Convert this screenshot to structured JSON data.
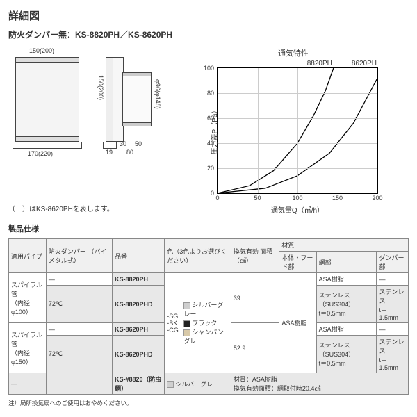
{
  "title": "詳細図",
  "subtitle": "防火ダンパー無：KS-8820PH／KS-8620PH",
  "diagram": {
    "dim_top": "150(200)",
    "dim_bottom": "170(220)",
    "dim_side_h": "150(200)",
    "dim_pipe": "φ96(φ148)",
    "dim_19": "19",
    "dim_30": "30",
    "dim_50": "50",
    "dim_80": "80",
    "note": "（　）はKS-8620PHを表します。"
  },
  "chart": {
    "title": "通気特性",
    "series_labels": [
      "8820PH",
      "8620PH"
    ],
    "xlabel": "通気量Q（㎥/h）",
    "ylabel": "圧力差P（Pa）",
    "xlim": [
      0,
      200
    ],
    "xtick_step": 50,
    "ylim": [
      0,
      100
    ],
    "ytick_step": 20,
    "grid_color": "#cccccc",
    "curve_color": "#000000",
    "curves": {
      "8820PH": [
        [
          0,
          0
        ],
        [
          40,
          6
        ],
        [
          70,
          18
        ],
        [
          100,
          40
        ],
        [
          120,
          62
        ],
        [
          135,
          82
        ],
        [
          145,
          100
        ]
      ],
      "8620PH": [
        [
          0,
          0
        ],
        [
          60,
          4
        ],
        [
          100,
          14
        ],
        [
          140,
          32
        ],
        [
          170,
          56
        ],
        [
          190,
          80
        ],
        [
          200,
          92
        ]
      ]
    }
  },
  "spec_heading": "製品仕様",
  "table": {
    "headers": {
      "pipe": "適用パイプ",
      "damper": "防火ダンパー\n（バイメタル式）",
      "model": "品番",
      "color": "色（3色よりお選びください）",
      "area": "換気有効\n面積（㎠）",
      "material": "材質",
      "mat_body": "本体・フード部",
      "mat_net": "網部",
      "mat_damper": "ダンパー部"
    },
    "colors": [
      {
        "code": "-SG",
        "swatch": "#cfcfcf",
        "name": "シルバーグレー"
      },
      {
        "code": "-BK",
        "swatch": "#222222",
        "name": "ブラック"
      },
      {
        "code": "-CG",
        "swatch": "#d8c9a8",
        "name": "シャンパングレー"
      }
    ],
    "rows": [
      {
        "pipe": "スパイラル管\n（内径φ100）",
        "damper": "—",
        "model": "KS-8820PH",
        "area": "39",
        "body": "ASA樹脂",
        "net": "ASA樹脂",
        "dmp": "—"
      },
      {
        "pipe": "",
        "damper": "72℃",
        "model": "KS-8820PHD",
        "area": "",
        "body": "",
        "net": "ステンレス（SUS304）\nt＝0.5mm",
        "dmp": "ステンレス\nt＝1.5mm"
      },
      {
        "pipe": "スパイラル管\n（内径φ150）",
        "damper": "—",
        "model": "KS-8620PH",
        "area": "52.9",
        "body": "",
        "net": "ASA樹脂",
        "dmp": "—"
      },
      {
        "pipe": "",
        "damper": "72℃",
        "model": "KS-8620PHD",
        "area": "",
        "body": "",
        "net": "ステンレス（SUS304）\nt＝0.5mm",
        "dmp": "ステンレス\nt＝1.5mm"
      }
    ],
    "screen_row": {
      "pipe": "—",
      "damper": "",
      "model": "KS-#8820（防虫網）",
      "color_swatch": "#cfcfcf",
      "color_name": "シルバーグレー",
      "note": "材質：ASA樹脂\n換気有効面積：網取付時20.4㎠"
    }
  },
  "footnote": "注）局所換気扇へのご使用はおやめください。"
}
